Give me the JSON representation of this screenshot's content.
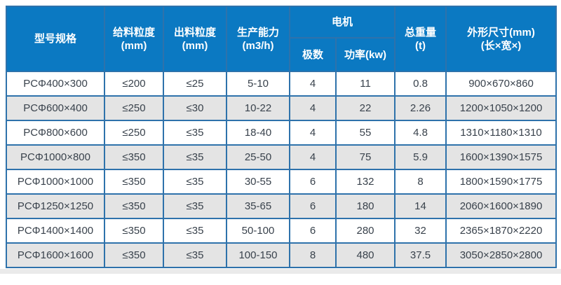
{
  "table": {
    "header": {
      "model": "型号规格",
      "feed_line1": "给料粒度",
      "feed_line2": "(mm)",
      "output_line1": "出料粒度",
      "output_line2": "(mm)",
      "capacity_line1": "生产能力",
      "capacity_line2": "(m3/h)",
      "motor": "电机",
      "motor_poles": "极数",
      "motor_power": "功率(kw)",
      "weight_line1": "总重量",
      "weight_line2": "(t)",
      "dim_line1": "外形尺寸(mm)",
      "dim_line2": "(长×宽×)"
    },
    "rows": [
      [
        "PCΦ400×300",
        "≤200",
        "≤25",
        "5-10",
        "4",
        "11",
        "0.8",
        "900×670×860"
      ],
      [
        "PCΦ600×400",
        "≤250",
        "≤30",
        "10-22",
        "4",
        "22",
        "2.26",
        "1200×1050×1200"
      ],
      [
        "PCΦ800×600",
        "≤250",
        "≤35",
        "18-40",
        "4",
        "55",
        "4.8",
        "1310×1180×1310"
      ],
      [
        "PCΦ1000×800",
        "≤350",
        "≤35",
        "25-50",
        "4",
        "75",
        "5.9",
        "1600×1390×1575"
      ],
      [
        "PCΦ1000×1000",
        "≤350",
        "≤35",
        "30-55",
        "6",
        "132",
        "8",
        "1800×1590×1775"
      ],
      [
        "PCΦ1250×1250",
        "≤350",
        "≤35",
        "35-65",
        "6",
        "180",
        "14",
        "2060×1600×1890"
      ],
      [
        "PCΦ1400×1400",
        "≤350",
        "≤35",
        "50-100",
        "6",
        "280",
        "32",
        "2365×1870×2220"
      ],
      [
        "PCΦ1600×1600",
        "≤350",
        "≤35",
        "100-150",
        "8",
        "480",
        "37.5",
        "3050×2850×2800"
      ]
    ],
    "colors": {
      "header_bg": "#0b79c2",
      "header_text": "#ffffff",
      "grid_border": "#2e72ab",
      "row_bg": "#ffffff",
      "row_alt_bg": "#e4e4e4",
      "cell_text": "#39424c",
      "bottom_strip": "#eaeaea"
    }
  }
}
